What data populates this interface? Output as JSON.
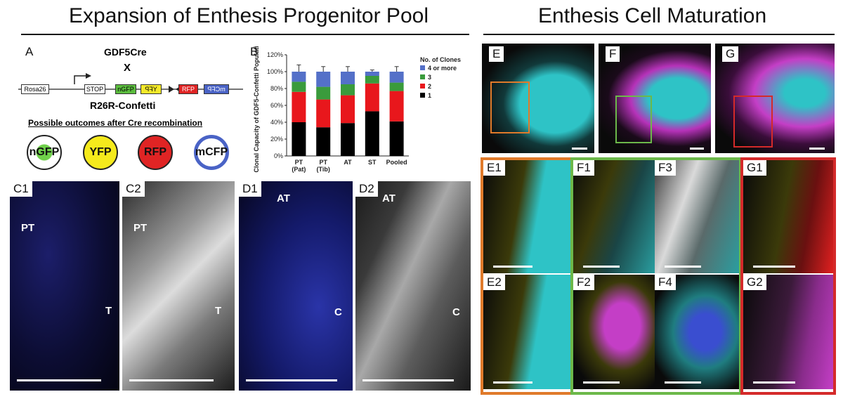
{
  "titles": {
    "left": "Expansion of Enthesis Progenitor Pool",
    "right": "Enthesis Cell Maturation"
  },
  "panel_a": {
    "letter": "A",
    "top_line": "GDF5Cre",
    "cross": "X",
    "bottom_line": "R26R-Confetti",
    "construct": [
      "Rosa26",
      "STOP",
      "nGFP",
      "YFP",
      "RFP",
      "mCFP"
    ],
    "outcomes_title": "Possible outcomes after Cre recombination",
    "outcomes": [
      "nGFP",
      "YFP",
      "RFP",
      "mCFP"
    ]
  },
  "panel_b": {
    "letter": "B"
  },
  "chart_data": {
    "type": "bar",
    "stacked": true,
    "categories": [
      "PT (Pat)",
      "PT (Tib)",
      "AT",
      "ST",
      "Pooled"
    ],
    "category_lines": [
      [
        "PT",
        "(Pat)"
      ],
      [
        "PT",
        "(Tib)"
      ],
      [
        "AT"
      ],
      [
        "ST"
      ],
      [
        "Pooled"
      ]
    ],
    "ylabel": "Clonal Capacity of GDF5-Confetti Population",
    "ylim": [
      0,
      120
    ],
    "yticks": [
      "0%",
      "20%",
      "40%",
      "60%",
      "80%",
      "100%",
      "120%"
    ],
    "legend_title": "No. of Clones",
    "series": [
      {
        "name": "1",
        "color": "#000000",
        "values": [
          40,
          34,
          39,
          53,
          41
        ]
      },
      {
        "name": "2",
        "color": "#e8171c",
        "values": [
          36,
          33,
          33,
          33,
          36
        ]
      },
      {
        "name": "3",
        "color": "#3a9b3c",
        "values": [
          12,
          15,
          13,
          9,
          10
        ]
      },
      {
        "name": "4 or more",
        "color": "#5470c8",
        "values": [
          12,
          18,
          15,
          5,
          13
        ]
      }
    ],
    "error_tops": [
      108,
      106,
      106,
      102,
      106
    ]
  },
  "micrographs": {
    "C1": "C1",
    "C2": "C2",
    "D1": "D1",
    "D2": "D2",
    "E": "E",
    "F": "F",
    "G": "G",
    "E1": "E1",
    "E2": "E2",
    "F1": "F1",
    "F2": "F2",
    "F3": "F3",
    "F4": "F4",
    "G1": "G1",
    "G2": "G2"
  },
  "tissue_labels": {
    "PT": "PT",
    "T": "T",
    "AT": "AT",
    "C": "C"
  },
  "colors": {
    "inset_orange": "#e07a2a",
    "inset_green": "#6cb84a",
    "inset_red": "#d42a2a",
    "cyan": "#3fd3d6",
    "magenta": "#c43ec6",
    "yellow": "#f0e020"
  }
}
